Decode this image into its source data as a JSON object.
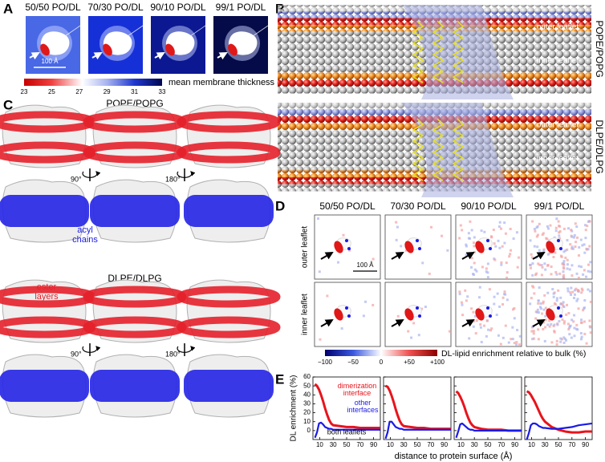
{
  "panel_a": {
    "label": "A",
    "titles": [
      "50/50 PO/DL",
      "70/30 PO/DL",
      "90/10 PO/DL",
      "99/1 PO/DL"
    ],
    "scale_bar": "100 Å",
    "colorbar": {
      "ticks": [
        23,
        25,
        27,
        29,
        31,
        33
      ],
      "label": "mean membrane thickness (Å)"
    }
  },
  "panel_b": {
    "label": "B",
    "membranes": [
      {
        "name": "POPE/POPG",
        "outer": "outer leaflet",
        "inner": "inner leaflet"
      },
      {
        "name": "DLPE/DLPG",
        "outer": "outer leaflet",
        "inner": "inner leaflet"
      }
    ]
  },
  "panel_c": {
    "label": "C",
    "systems": [
      {
        "name": "POPE/POPG",
        "rotations": [
          "90°",
          "180°"
        ]
      },
      {
        "name": "DLPE/DLPG",
        "rotations": [
          "90°",
          "180°"
        ]
      }
    ],
    "acyl_label": "acyl chains",
    "ester_label": "ester layers"
  },
  "panel_d": {
    "label": "D",
    "titles": [
      "50/50 PO/DL",
      "70/30 PO/DL",
      "90/10 PO/DL",
      "99/1 PO/DL"
    ],
    "rows": [
      "outer leaflet",
      "inner leaflet"
    ],
    "scale_bar": "100 Å",
    "colorbar": {
      "ticks": [
        {
          "value": -100,
          "label": "−100"
        },
        {
          "value": -50,
          "label": "−50"
        },
        0,
        {
          "value": 50,
          "label": "+50"
        },
        {
          "value": 100,
          "label": "+100"
        }
      ],
      "label": "DL-lipid enrichment relative to bulk (%)"
    }
  },
  "panel_e": {
    "label": "E",
    "type": "line",
    "ylabel": "DL enrichment (%)",
    "xlabel": "distance to protein surface (Å)",
    "annotation": "both leaflets",
    "x": [
      3,
      6,
      9,
      12,
      15,
      18,
      21,
      24,
      27,
      30,
      40,
      50,
      60,
      70,
      80,
      90,
      100
    ],
    "xlim": [
      0,
      100
    ],
    "ylim": [
      -10,
      60
    ],
    "xticks": [
      10,
      30,
      50,
      70,
      90
    ],
    "yticks": [
      0,
      10,
      20,
      30,
      40,
      50,
      60
    ],
    "charts": [
      {
        "series": [
          {
            "name": "dimerization interface",
            "color": "#e8141c",
            "values": [
              52,
              50,
              46,
              40,
              33,
              25,
              18,
              12,
              8,
              6,
              5,
              4,
              4,
              3,
              3,
              3,
              3
            ]
          },
          {
            "name": "other interfaces",
            "color": "#1a1ae6",
            "values": [
              -8,
              -2,
              8,
              9,
              7,
              4,
              3,
              2,
              2,
              1,
              1,
              1,
              1,
              1,
              1,
              1,
              1
            ]
          }
        ]
      },
      {
        "series": [
          {
            "color": "#e8141c",
            "values": [
              50,
              49,
              45,
              39,
              32,
              24,
              17,
              11,
              7,
              5,
              4,
              3,
              3,
              2,
              2,
              2,
              2
            ]
          },
          {
            "color": "#1a1ae6",
            "values": [
              -9,
              -2,
              10,
              10,
              7,
              4,
              3,
              2,
              2,
              1,
              1,
              1,
              1,
              1,
              1,
              1,
              1
            ]
          }
        ]
      },
      {
        "series": [
          {
            "color": "#e8141c",
            "values": [
              44,
              42,
              38,
              33,
              27,
              20,
              14,
              9,
              6,
              4,
              2,
              1,
              1,
              1,
              0,
              0,
              0
            ]
          },
          {
            "color": "#1a1ae6",
            "values": [
              -8,
              -1,
              7,
              8,
              6,
              4,
              2,
              1,
              1,
              0,
              0,
              0,
              0,
              0,
              0,
              0,
              0
            ]
          }
        ]
      },
      {
        "series": [
          {
            "color": "#e8141c",
            "values": [
              44,
              43,
              40,
              36,
              32,
              27,
              22,
              17,
              13,
              10,
              4,
              1,
              -1,
              -2,
              -2,
              -1,
              -1
            ]
          },
          {
            "color": "#1a1ae6",
            "values": [
              -10,
              -3,
              6,
              8,
              8,
              7,
              5,
              4,
              3,
              3,
              2,
              2,
              3,
              4,
              6,
              7,
              8
            ]
          }
        ]
      }
    ]
  }
}
